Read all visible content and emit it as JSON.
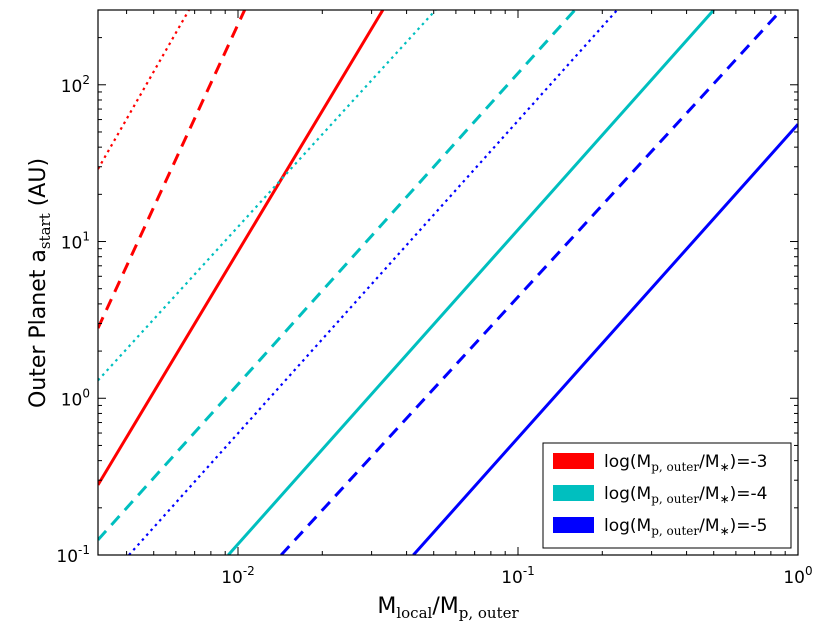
{
  "chart_data": {
    "type": "line",
    "xscale": "log",
    "yscale": "log",
    "xlim": [
      0.003162,
      1.0
    ],
    "ylim": [
      0.1,
      300
    ],
    "xlabel_main": "M",
    "xlabel_sub1": "local",
    "xlabel_mid": "/M",
    "xlabel_sub2": "p, outer",
    "ylabel_main": "Outer Planet a",
    "ylabel_sub": "start",
    "ylabel_unit": " (AU)",
    "x_tick_labels": [
      {
        "base": "10",
        "exp": "-2",
        "value": 0.01
      },
      {
        "base": "10",
        "exp": "-1",
        "value": 0.1
      },
      {
        "base": "10",
        "exp": "0",
        "value": 1
      }
    ],
    "y_tick_labels": [
      {
        "base": "10",
        "exp": "-1",
        "value": 0.1
      },
      {
        "base": "10",
        "exp": "0",
        "value": 1
      },
      {
        "base": "10",
        "exp": "1",
        "value": 10
      },
      {
        "base": "10",
        "exp": "2",
        "value": 100
      }
    ],
    "colors": {
      "red": "#ff0000",
      "cyan": "#00bfbf",
      "blue": "#0000ff"
    },
    "series": [
      {
        "color": "red",
        "dash": "solid",
        "x": [
          0.003162,
          0.0329
        ],
        "y": [
          0.28,
          300
        ]
      },
      {
        "color": "red",
        "dash": "dashed",
        "x": [
          0.003162,
          0.01056
        ],
        "y": [
          2.8,
          300
        ]
      },
      {
        "color": "red",
        "dash": "dotted",
        "x": [
          0.003162,
          0.00668
        ],
        "y": [
          29,
          300
        ]
      },
      {
        "color": "cyan",
        "dash": "solid",
        "x": [
          0.00923,
          0.5
        ],
        "y": [
          0.1,
          300
        ]
      },
      {
        "color": "cyan",
        "dash": "dashed",
        "x": [
          0.003162,
          0.1597
        ],
        "y": [
          0.125,
          300
        ]
      },
      {
        "color": "cyan",
        "dash": "dotted",
        "x": [
          0.003162,
          0.0508
        ],
        "y": [
          1.3,
          300
        ]
      },
      {
        "color": "blue",
        "dash": "solid",
        "x": [
          0.0423,
          1.0
        ],
        "y": [
          0.1,
          56
        ]
      },
      {
        "color": "blue",
        "dash": "dashed",
        "x": [
          0.01426,
          0.872
        ],
        "y": [
          0.1,
          300
        ]
      },
      {
        "color": "blue",
        "dash": "dotted",
        "x": [
          0.00408,
          0.226
        ],
        "y": [
          0.1,
          300
        ]
      }
    ],
    "legend": {
      "placement": "lower-right",
      "entries": [
        {
          "color": "red",
          "pre": "log(M",
          "sub": "p, outer",
          "mid": "/M",
          "star": "∗",
          "post": ")=-3"
        },
        {
          "color": "cyan",
          "pre": "log(M",
          "sub": "p, outer",
          "mid": "/M",
          "star": "∗",
          "post": ")=-4"
        },
        {
          "color": "blue",
          "pre": "log(M",
          "sub": "p, outer",
          "mid": "/M",
          "star": "∗",
          "post": ")=-5"
        }
      ]
    }
  }
}
